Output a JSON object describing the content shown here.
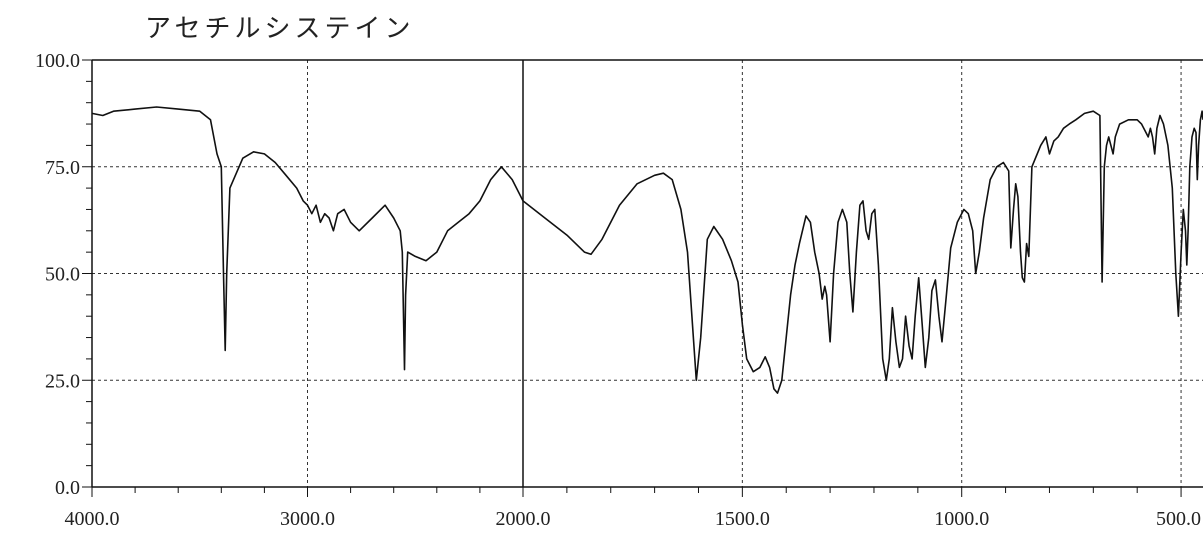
{
  "chart_data": {
    "type": "line",
    "title": "アセチルシステイン",
    "xlabel": "",
    "ylabel": "",
    "x_axis_segments": [
      {
        "from": 4000,
        "to": 2000
      },
      {
        "from": 2000,
        "to": 450
      }
    ],
    "y_range": [
      0,
      100
    ],
    "y_ticks": [
      0.0,
      25.0,
      50.0,
      75.0,
      100.0
    ],
    "y_tick_labels": [
      "0.0",
      "25.0",
      "50.0",
      "75.0",
      "100.0"
    ],
    "x_ticks": [
      4000,
      3000,
      2000,
      1500,
      1000,
      500
    ],
    "x_tick_labels": [
      "4000.0",
      "3000.0",
      "2000.0",
      "1500.0",
      "1000.0",
      "500.0"
    ],
    "grid": "dotted",
    "series": [
      {
        "values": [
          [
            4000,
            87.5
          ],
          [
            3950,
            87
          ],
          [
            3900,
            88
          ],
          [
            3800,
            88.5
          ],
          [
            3700,
            89
          ],
          [
            3600,
            88.5
          ],
          [
            3500,
            88
          ],
          [
            3450,
            86
          ],
          [
            3420,
            78
          ],
          [
            3400,
            75
          ],
          [
            3390,
            50
          ],
          [
            3382,
            32
          ],
          [
            3375,
            50
          ],
          [
            3360,
            70
          ],
          [
            3300,
            77
          ],
          [
            3250,
            78.5
          ],
          [
            3200,
            78
          ],
          [
            3150,
            76
          ],
          [
            3100,
            73
          ],
          [
            3050,
            70
          ],
          [
            3020,
            67
          ],
          [
            3000,
            66
          ],
          [
            2980,
            64
          ],
          [
            2960,
            66
          ],
          [
            2940,
            62
          ],
          [
            2920,
            64
          ],
          [
            2900,
            63
          ],
          [
            2880,
            60
          ],
          [
            2860,
            64
          ],
          [
            2830,
            65
          ],
          [
            2800,
            62
          ],
          [
            2760,
            60
          ],
          [
            2700,
            63
          ],
          [
            2640,
            66
          ],
          [
            2600,
            63
          ],
          [
            2570,
            60
          ],
          [
            2560,
            55
          ],
          [
            2550,
            27.5
          ],
          [
            2545,
            45
          ],
          [
            2535,
            55
          ],
          [
            2500,
            54
          ],
          [
            2450,
            53
          ],
          [
            2400,
            55
          ],
          [
            2350,
            60
          ],
          [
            2300,
            62
          ],
          [
            2250,
            64
          ],
          [
            2200,
            67
          ],
          [
            2150,
            72
          ],
          [
            2100,
            75
          ],
          [
            2050,
            72
          ],
          [
            2000,
            67
          ],
          [
            1950,
            63
          ],
          [
            1900,
            59
          ],
          [
            1860,
            55
          ],
          [
            1845,
            54.5
          ],
          [
            1820,
            58
          ],
          [
            1780,
            66
          ],
          [
            1740,
            71
          ],
          [
            1700,
            73
          ],
          [
            1680,
            73.5
          ],
          [
            1660,
            72
          ],
          [
            1640,
            65
          ],
          [
            1625,
            55
          ],
          [
            1615,
            40
          ],
          [
            1605,
            25
          ],
          [
            1595,
            35
          ],
          [
            1580,
            58
          ],
          [
            1565,
            61
          ],
          [
            1545,
            58
          ],
          [
            1525,
            53
          ],
          [
            1510,
            48
          ],
          [
            1500,
            38
          ],
          [
            1490,
            30
          ],
          [
            1475,
            27
          ],
          [
            1460,
            28
          ],
          [
            1448,
            30.5
          ],
          [
            1438,
            28
          ],
          [
            1428,
            23
          ],
          [
            1420,
            22
          ],
          [
            1410,
            25
          ],
          [
            1400,
            35
          ],
          [
            1390,
            45
          ],
          [
            1380,
            52
          ],
          [
            1370,
            57
          ],
          [
            1355,
            63.5
          ],
          [
            1345,
            62
          ],
          [
            1335,
            55
          ],
          [
            1325,
            50
          ],
          [
            1318,
            44
          ],
          [
            1312,
            47
          ],
          [
            1308,
            45
          ],
          [
            1300,
            34
          ],
          [
            1292,
            50
          ],
          [
            1282,
            62
          ],
          [
            1272,
            65
          ],
          [
            1262,
            62
          ],
          [
            1255,
            50
          ],
          [
            1248,
            41
          ],
          [
            1240,
            55
          ],
          [
            1232,
            66
          ],
          [
            1225,
            67
          ],
          [
            1218,
            60
          ],
          [
            1212,
            58
          ],
          [
            1205,
            64
          ],
          [
            1198,
            65
          ],
          [
            1190,
            52
          ],
          [
            1180,
            30
          ],
          [
            1172,
            25
          ],
          [
            1165,
            30
          ],
          [
            1158,
            42
          ],
          [
            1150,
            34
          ],
          [
            1142,
            28
          ],
          [
            1135,
            30
          ],
          [
            1128,
            40
          ],
          [
            1120,
            33
          ],
          [
            1113,
            30
          ],
          [
            1106,
            40
          ],
          [
            1098,
            49
          ],
          [
            1090,
            38
          ],
          [
            1083,
            28
          ],
          [
            1075,
            35
          ],
          [
            1068,
            46
          ],
          [
            1060,
            48.5
          ],
          [
            1052,
            40
          ],
          [
            1045,
            34
          ],
          [
            1035,
            45
          ],
          [
            1025,
            56
          ],
          [
            1010,
            62
          ],
          [
            995,
            65
          ],
          [
            985,
            64
          ],
          [
            975,
            60
          ],
          [
            968,
            50
          ],
          [
            960,
            55
          ],
          [
            950,
            63
          ],
          [
            935,
            72
          ],
          [
            920,
            75
          ],
          [
            905,
            76
          ],
          [
            893,
            74
          ],
          [
            888,
            56
          ],
          [
            882,
            65
          ],
          [
            877,
            71
          ],
          [
            872,
            68
          ],
          [
            866,
            55
          ],
          [
            862,
            49
          ],
          [
            857,
            48
          ],
          [
            852,
            57
          ],
          [
            847,
            54
          ],
          [
            840,
            75
          ],
          [
            820,
            80
          ],
          [
            808,
            82
          ],
          [
            800,
            78
          ],
          [
            790,
            81
          ],
          [
            780,
            82
          ],
          [
            768,
            84
          ],
          [
            755,
            85
          ],
          [
            740,
            86
          ],
          [
            720,
            87.5
          ],
          [
            700,
            88
          ],
          [
            685,
            87
          ],
          [
            680,
            48
          ],
          [
            675,
            75
          ],
          [
            670,
            80
          ],
          [
            665,
            82
          ],
          [
            660,
            80
          ],
          [
            655,
            78
          ],
          [
            650,
            82
          ],
          [
            640,
            85
          ],
          [
            620,
            86
          ],
          [
            600,
            86
          ],
          [
            590,
            85
          ],
          [
            580,
            83
          ],
          [
            575,
            82
          ],
          [
            570,
            84
          ],
          [
            565,
            82
          ],
          [
            560,
            78
          ],
          [
            555,
            84
          ],
          [
            548,
            87
          ],
          [
            540,
            85
          ],
          [
            530,
            80
          ],
          [
            520,
            70
          ],
          [
            512,
            50
          ],
          [
            506,
            40
          ],
          [
            500,
            55
          ],
          [
            495,
            65
          ],
          [
            490,
            60
          ],
          [
            487,
            52
          ],
          [
            484,
            60
          ],
          [
            480,
            75
          ],
          [
            475,
            82
          ],
          [
            470,
            84
          ],
          [
            466,
            83
          ],
          [
            463,
            72
          ],
          [
            460,
            80
          ],
          [
            456,
            86
          ],
          [
            452,
            88
          ],
          [
            450,
            86
          ]
        ]
      }
    ]
  }
}
